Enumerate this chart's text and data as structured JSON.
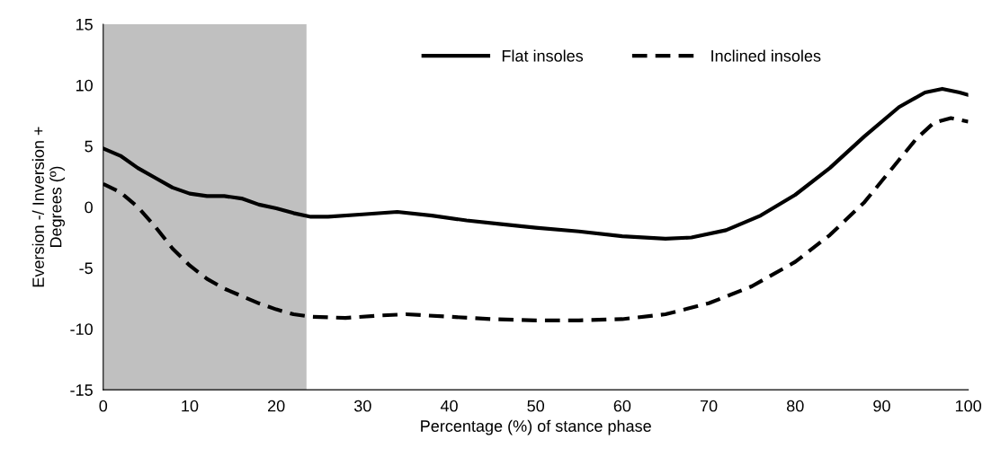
{
  "chart_data": {
    "type": "line",
    "xlabel": "Percentage (%) of stance phase",
    "ylabel": "Eversion -/ Inversion +\nDegrees (º)",
    "xlim": [
      0,
      100
    ],
    "xticks": [
      0,
      10,
      20,
      30,
      40,
      50,
      60,
      70,
      80,
      90,
      100
    ],
    "ylim": [
      -15,
      15
    ],
    "yticks": [
      -15,
      -10,
      -5,
      0,
      5,
      10,
      15
    ],
    "grid": false,
    "legend": "top",
    "marker": "none",
    "bands": [
      {
        "axis": "x",
        "from": 0,
        "to": 23.5,
        "color": "#c0c0c0"
      }
    ],
    "series": [
      {
        "name": "Flat insoles",
        "color": "#000000",
        "line_style": "solid",
        "x": [
          0,
          2,
          4,
          6,
          8,
          10,
          12,
          14,
          16,
          18,
          20,
          22,
          24,
          26,
          30,
          34,
          38,
          42,
          46,
          50,
          55,
          60,
          65,
          68,
          72,
          76,
          80,
          84,
          88,
          92,
          95,
          97,
          99,
          100
        ],
        "values": [
          4.8,
          4.2,
          3.2,
          2.4,
          1.6,
          1.1,
          0.9,
          0.9,
          0.7,
          0.2,
          -0.1,
          -0.5,
          -0.8,
          -0.8,
          -0.6,
          -0.4,
          -0.7,
          -1.1,
          -1.4,
          -1.7,
          -2.0,
          -2.4,
          -2.6,
          -2.5,
          -1.9,
          -0.7,
          1.0,
          3.2,
          5.8,
          8.2,
          9.4,
          9.7,
          9.4,
          9.2
        ]
      },
      {
        "name": "Inclined insoles",
        "color": "#000000",
        "line_style": "dashed",
        "x": [
          0,
          2,
          4,
          6,
          8,
          10,
          12,
          14,
          16,
          18,
          20,
          22,
          24,
          28,
          32,
          35,
          40,
          45,
          50,
          55,
          60,
          65,
          70,
          75,
          80,
          84,
          88,
          91,
          94,
          96,
          98,
          100
        ],
        "values": [
          1.9,
          1.2,
          0.0,
          -1.6,
          -3.4,
          -4.8,
          -5.9,
          -6.7,
          -7.3,
          -7.9,
          -8.4,
          -8.8,
          -9.0,
          -9.1,
          -8.9,
          -8.8,
          -9.0,
          -9.2,
          -9.3,
          -9.3,
          -9.2,
          -8.8,
          -7.9,
          -6.5,
          -4.5,
          -2.3,
          0.4,
          3.0,
          5.6,
          6.9,
          7.3,
          7.0
        ]
      }
    ]
  }
}
